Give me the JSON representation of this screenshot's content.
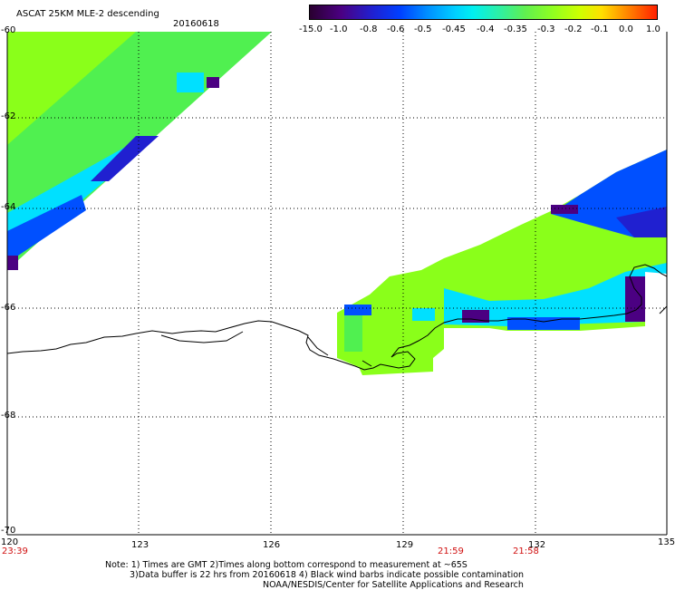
{
  "header": {
    "product": "ASCAT 25KM MLE-2 descending",
    "date": "20160618"
  },
  "colorbar": {
    "labels": [
      "-15.0",
      "-1.0",
      "-0.8",
      "-0.6",
      "-0.5",
      "-0.45",
      "-0.4",
      "-0.35",
      "-0.3",
      "-0.2",
      "-0.1",
      "0.0",
      "1.0"
    ],
    "colors": [
      "#330033",
      "#4b0082",
      "#2020d0",
      "#0050ff",
      "#0098ff",
      "#00e0ff",
      "#20e8a0",
      "#50f050",
      "#8aff1a",
      "#c8ff00",
      "#ffe000",
      "#ff8000",
      "#ff2000"
    ]
  },
  "lat_labels": [
    "-60",
    "-62",
    "-64",
    "-66",
    "-68",
    "-70"
  ],
  "lon_labels": [
    "120",
    "123",
    "126",
    "129",
    "132",
    "135"
  ],
  "time_labels": [
    "23:39",
    "21:59",
    "21:58"
  ],
  "notes": {
    "line1": "Note: 1) Times are GMT 2)Times along bottom correspond to measurement at ~65S",
    "line2": "3)Data buffer is 22 hrs from 20160618 4) Black wind barbs indicate possible contamination",
    "line3": "NOAA/NESDIS/Center for Satellite Applications and Research"
  },
  "style": {
    "main_green": "#8aff1a",
    "mid_green": "#50f050",
    "cyan": "#00e0ff",
    "blue": "#0050ff",
    "dark_blue": "#2020d0",
    "purple": "#4b0082",
    "coast": "#000000",
    "time_label_color": "#d01010"
  }
}
